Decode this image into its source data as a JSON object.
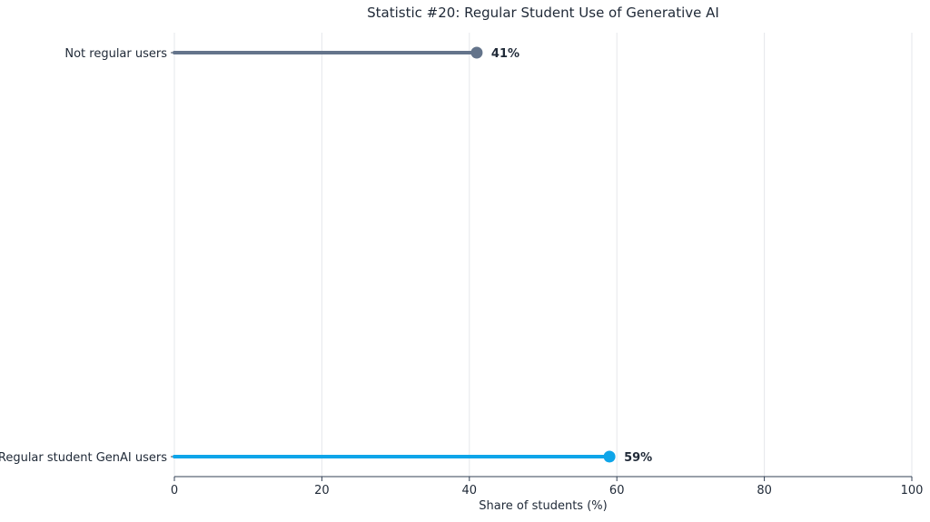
{
  "chart_data": {
    "type": "lollipop",
    "title": "Statistic #20: Regular Student Use of Generative AI",
    "xlabel": "Share of students (%)",
    "ylabel": "",
    "xlim": [
      0,
      100
    ],
    "xticks": [
      "0",
      "20",
      "40",
      "60",
      "80",
      "100"
    ],
    "grid": "vertical",
    "categories": [
      "Not regular users",
      "Regular student GenAI users"
    ],
    "values": [
      41,
      59
    ],
    "value_labels": [
      "41%",
      "59%"
    ],
    "colors": [
      "#64748b",
      "#0ea5e9"
    ],
    "axis_color": "#334155",
    "grid_color": "#e5e7eb"
  }
}
